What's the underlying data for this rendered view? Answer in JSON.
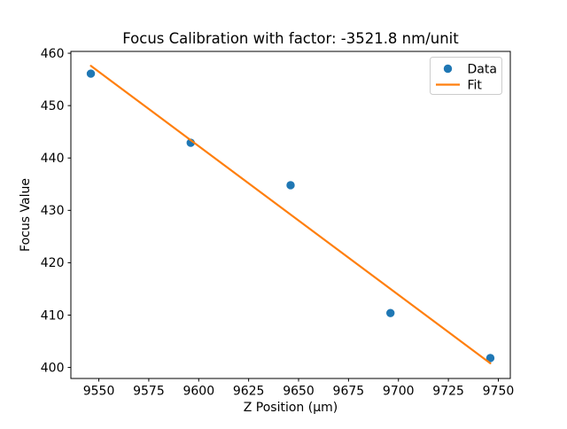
{
  "figure": {
    "background": "#ffffff"
  },
  "chart_data": {
    "type": "scatter",
    "title": "Focus Calibration with factor: -3521.8 nm/unit",
    "xlabel": "Z Position (µm)",
    "ylabel": "Focus Value",
    "xlim": [
      9536,
      9756
    ],
    "ylim": [
      397.9,
      460.35
    ],
    "xticks": [
      9550,
      9575,
      9600,
      9625,
      9650,
      9675,
      9700,
      9725,
      9750
    ],
    "yticks": [
      400,
      410,
      420,
      430,
      440,
      450,
      460
    ],
    "grid": false,
    "series": [
      {
        "name": "Data",
        "kind": "scatter",
        "color": "#1f77b4",
        "marker": "circle",
        "x": [
          9546,
          9596,
          9646,
          9696,
          9746
        ],
        "y": [
          456.1,
          442.9,
          434.8,
          410.4,
          401.8
        ]
      },
      {
        "name": "Fit",
        "kind": "line",
        "color": "#ff7f0e",
        "x": [
          9546,
          9746
        ],
        "y": [
          457.6,
          400.8
        ]
      }
    ],
    "legend": {
      "position": "upper right",
      "entries": [
        "Data",
        "Fit"
      ]
    },
    "colors": {
      "spine": "#000000",
      "tick": "#000000",
      "text": "#000000",
      "legend_border": "#cccccc",
      "legend_fill": "#ffffff"
    }
  }
}
